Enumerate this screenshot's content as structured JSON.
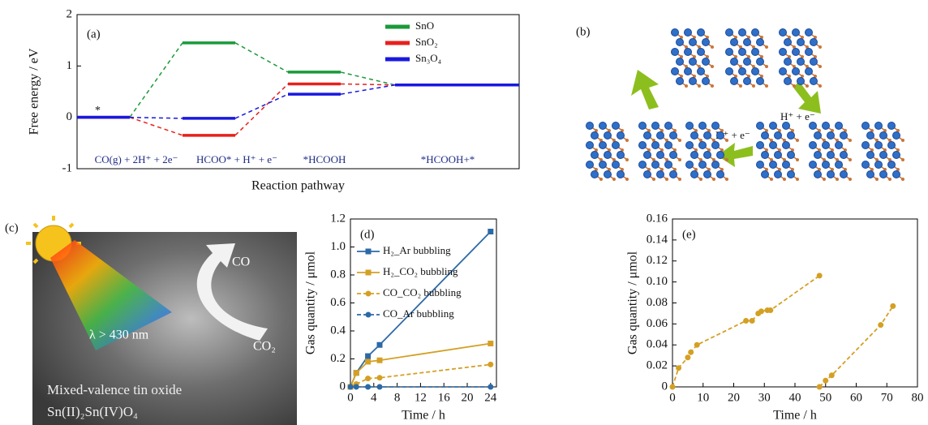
{
  "chart_data": [
    {
      "type": "energy",
      "panel_label": "(a)",
      "ylabel": "Free energy / eV",
      "xlabel": "Reaction pathway",
      "categories": [
        "CO(g) + 2H⁺ + 2e⁻",
        "HCOO* + H⁺ + e⁻",
        "*HCOOH",
        "*HCOOH+*"
      ],
      "annotation": "*",
      "ylim": [
        -1,
        2
      ],
      "yticks": [
        -1,
        0,
        1,
        2
      ],
      "legend": "upper right",
      "series": [
        {
          "name": "SnO",
          "color": "#1a9a3a",
          "values": [
            0,
            1.45,
            0.88,
            0.63
          ]
        },
        {
          "name": "SnO₂",
          "color": "#e8201c",
          "values": [
            0,
            -0.35,
            0.65,
            0.63
          ]
        },
        {
          "name": "Sn₃O₄",
          "color": "#1818e0",
          "values": [
            0,
            -0.02,
            0.45,
            0.63
          ]
        }
      ]
    },
    {
      "type": "line",
      "panel_label": "(d)",
      "xlabel": "Time / h",
      "ylabel": "Gas quantity / μmol",
      "x": [
        0,
        1,
        3,
        5,
        24
      ],
      "xlim": [
        0,
        25
      ],
      "xticks": [
        0,
        4,
        8,
        12,
        16,
        20,
        24
      ],
      "ylim": [
        0,
        1.2
      ],
      "yticks": [
        0,
        0.2,
        0.4,
        0.6,
        0.8,
        {
          "value": 1,
          "label": "1.0"
        },
        1.2
      ],
      "legend": "upper left",
      "series": [
        {
          "name": "H₂_Ar bubbling",
          "color": "#2c6aa6",
          "marker": "square",
          "dashed": false,
          "values": [
            0,
            0.1,
            0.22,
            0.3,
            1.11
          ]
        },
        {
          "name": "H₂_CO₂ bubbling",
          "color": "#d4a024",
          "marker": "square",
          "dashed": false,
          "values": [
            0,
            0.1,
            0.18,
            0.19,
            0.31
          ]
        },
        {
          "name": "CO_CO₂ bubbling",
          "color": "#d4a024",
          "marker": "circle",
          "dashed": true,
          "values": [
            0,
            0.02,
            0.06,
            0.065,
            0.16
          ]
        },
        {
          "name": "CO_Ar bubbling",
          "color": "#2c6aa6",
          "marker": "circle",
          "dashed": true,
          "values": [
            0,
            0,
            0,
            0,
            0
          ]
        }
      ]
    },
    {
      "type": "line",
      "panel_label": "(e)",
      "xlabel": "Time / h",
      "ylabel": "Gas quantity / μmol",
      "x": [
        0,
        2,
        5,
        6,
        8,
        24,
        26,
        28,
        29,
        31,
        32,
        48,
        null,
        48,
        50,
        52,
        68,
        72
      ],
      "xlim": [
        0,
        80
      ],
      "xticks": [
        0,
        10,
        20,
        30,
        40,
        50,
        60,
        70,
        80
      ],
      "ylim": [
        0,
        0.16
      ],
      "yticks": [
        0,
        0.02,
        0.04,
        0.06,
        0.08,
        {
          "value": 0.1,
          "label": "0.10"
        },
        0.12,
        0.14,
        0.16
      ],
      "series": [
        {
          "color": "#d4a024",
          "marker": "circle",
          "dashed": true,
          "values": [
            0,
            0.018,
            0.028,
            0.033,
            0.04,
            0.063,
            0.063,
            0.07,
            0.072,
            0.073,
            0.073,
            0.106,
            null,
            0,
            0.006,
            0.011,
            0.059,
            0.077
          ]
        }
      ]
    }
  ],
  "panels": {
    "b": {
      "label": "(b)",
      "annotations": [
        "H⁺ + e⁻",
        "H⁺ + e⁻"
      ]
    },
    "c": {
      "label": "(c)",
      "product": "CO",
      "reactant": "CO₂",
      "light": "λ > 430 nm",
      "material": "Mixed-valence tin oxide",
      "formula": "Sn(II)₂Sn(IV)O₄"
    }
  }
}
